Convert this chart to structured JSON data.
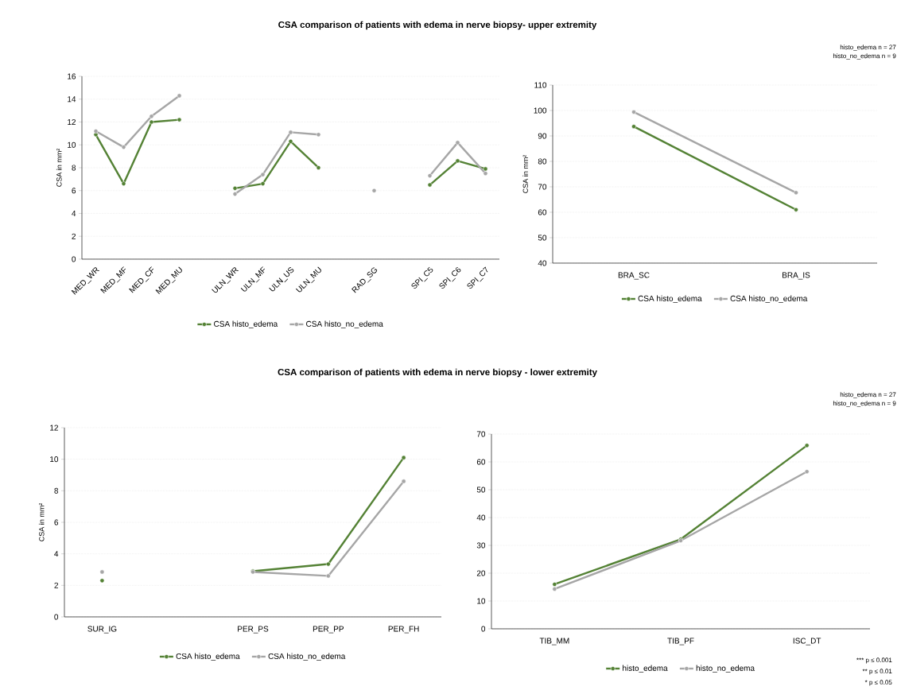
{
  "chart_data": [
    {
      "type": "line",
      "title": "CSA comparison of patients with edema in nerve biopsy- upper extremity",
      "ylabel": "CSA in mm²",
      "categories": [
        "MED_WR",
        "MED_MF",
        "MED_CF",
        "MED_MU",
        null,
        "ULN_WR",
        "ULN_MF",
        "ULN_US",
        "ULN_MU",
        null,
        "RAD_SG",
        null,
        "SPI_C5",
        "SPI_C6",
        "SPI_C7"
      ],
      "series": [
        {
          "name": "CSA histo_edema",
          "color": "#548235",
          "values": [
            10.9,
            6.6,
            12.0,
            12.2,
            null,
            6.2,
            6.6,
            10.3,
            8.0,
            null,
            null,
            null,
            6.5,
            8.6,
            7.9
          ]
        },
        {
          "name": "CSA histo_no_edema",
          "color": "#a6a6a6",
          "values": [
            11.2,
            9.8,
            12.5,
            14.3,
            null,
            5.7,
            7.4,
            11.1,
            10.9,
            null,
            6.0,
            null,
            7.3,
            10.2,
            7.5
          ]
        }
      ],
      "ylim": [
        0,
        16
      ],
      "yticks": [
        0,
        2,
        4,
        6,
        8,
        10,
        12,
        14,
        16
      ],
      "grid": "y",
      "legend": "bottom",
      "marker": "circle",
      "line_style": "solid"
    },
    {
      "type": "line",
      "ylabel": "CSA in mm²",
      "categories": [
        "BRA_SC",
        "BRA_IS"
      ],
      "series": [
        {
          "name": "CSA histo_edema",
          "color": "#548235",
          "values": [
            93.7,
            61.0
          ]
        },
        {
          "name": "CSA histo_no_edema",
          "color": "#a6a6a6",
          "values": [
            99.4,
            67.7
          ]
        }
      ],
      "ylim": [
        40,
        110
      ],
      "yticks": [
        40,
        50,
        60,
        70,
        80,
        90,
        100,
        110
      ],
      "grid": "y",
      "legend": "bottom",
      "marker": "circle",
      "line_style": "solid",
      "annotations": [
        "histo_edema n = 27",
        "histo_no_edema n = 9"
      ]
    },
    {
      "type": "line",
      "title": "CSA comparison of patients with edema in nerve biopsy - lower extremity",
      "ylabel": "CSA in mm²",
      "categories": [
        "SUR_IG",
        null,
        "PER_PS",
        "PER_PP",
        "PER_FH"
      ],
      "series": [
        {
          "name": "CSA histo_edema",
          "color": "#548235",
          "values": [
            2.3,
            null,
            2.9,
            3.35,
            10.1
          ]
        },
        {
          "name": "CSA histo_no_edema",
          "color": "#a6a6a6",
          "values": [
            2.85,
            null,
            2.85,
            2.6,
            8.6
          ]
        }
      ],
      "ylim": [
        0,
        12
      ],
      "yticks": [
        0,
        2,
        4,
        6,
        8,
        10,
        12
      ],
      "grid": "y",
      "legend": "bottom",
      "marker": "circle",
      "line_style": "solid"
    },
    {
      "type": "line",
      "categories": [
        "TIB_MM",
        "TIB_PF",
        "ISC_DT"
      ],
      "series": [
        {
          "name": "histo_edema",
          "color": "#548235",
          "values": [
            16.0,
            32.2,
            65.9
          ]
        },
        {
          "name": "histo_no_edema",
          "color": "#a6a6a6",
          "values": [
            14.3,
            31.7,
            56.5
          ]
        }
      ],
      "ylim": [
        0,
        70
      ],
      "yticks": [
        0,
        10,
        20,
        30,
        40,
        50,
        60,
        70
      ],
      "grid": "y",
      "legend": "bottom",
      "marker": "circle",
      "line_style": "solid",
      "annotations": [
        "histo_edema n = 27",
        "histo_no_edema n = 9",
        "*** p ≤ 0.001",
        "** p ≤ 0.01",
        "* p ≤ 0.05"
      ]
    }
  ]
}
